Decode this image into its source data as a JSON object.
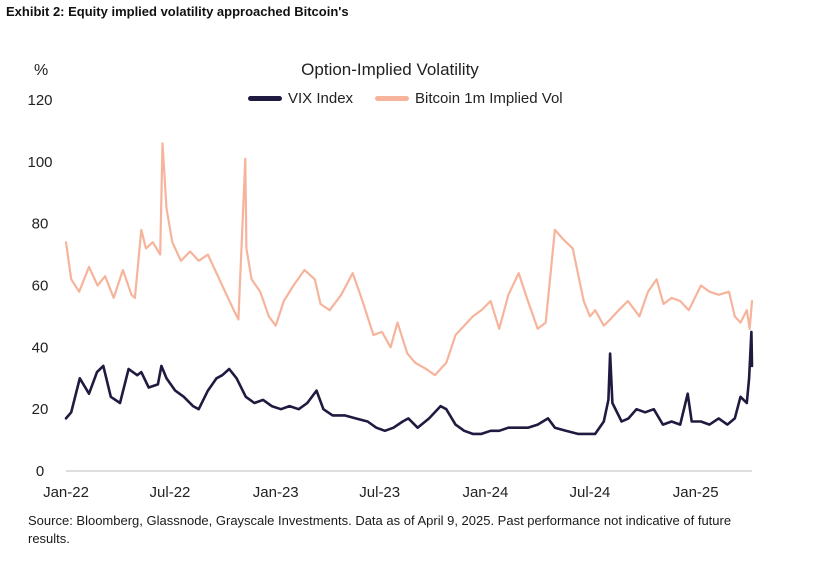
{
  "exhibit_title": "Exhibit 2: Equity implied volatility approached Bitcoin's",
  "source_note": "Source: Bloomberg, Glassnode, Grayscale Investments. Data as of April 9, 2025. Past performance not indicative of future results.",
  "chart_data": {
    "type": "line",
    "title": "Option-Implied Volatility",
    "ylabel": "%",
    "xlabel": "",
    "ylim": [
      0,
      120
    ],
    "yticks": [
      0,
      20,
      40,
      60,
      80,
      100,
      120
    ],
    "xlim": [
      "2022-01-01",
      "2025-04-09"
    ],
    "xticks": [
      {
        "date": "2022-01-01",
        "label": "Jan-22"
      },
      {
        "date": "2022-07-01",
        "label": "Jul-22"
      },
      {
        "date": "2023-01-01",
        "label": "Jan-23"
      },
      {
        "date": "2023-07-01",
        "label": "Jul-23"
      },
      {
        "date": "2024-01-01",
        "label": "Jan-24"
      },
      {
        "date": "2024-07-01",
        "label": "Jul-24"
      },
      {
        "date": "2025-01-01",
        "label": "Jan-25"
      }
    ],
    "grid": false,
    "legend_position": "top-center",
    "series": [
      {
        "name": "Bitcoin 1m Implied Vol",
        "color": "#f6b49c",
        "x": [
          "2022-01-01",
          "2022-01-10",
          "2022-01-24",
          "2022-02-10",
          "2022-02-25",
          "2022-03-10",
          "2022-03-25",
          "2022-04-10",
          "2022-04-25",
          "2022-05-01",
          "2022-05-12",
          "2022-05-20",
          "2022-06-01",
          "2022-06-14",
          "2022-06-18",
          "2022-06-25",
          "2022-07-05",
          "2022-07-20",
          "2022-08-05",
          "2022-08-20",
          "2022-09-05",
          "2022-09-20",
          "2022-10-05",
          "2022-10-20",
          "2022-10-28",
          "2022-11-09",
          "2022-11-11",
          "2022-11-20",
          "2022-12-05",
          "2022-12-20",
          "2023-01-01",
          "2023-01-15",
          "2023-02-01",
          "2023-02-20",
          "2023-03-10",
          "2023-03-20",
          "2023-04-05",
          "2023-04-25",
          "2023-05-15",
          "2023-06-01",
          "2023-06-20",
          "2023-07-05",
          "2023-07-20",
          "2023-08-01",
          "2023-08-18",
          "2023-09-01",
          "2023-09-20",
          "2023-10-05",
          "2023-10-25",
          "2023-11-10",
          "2023-11-25",
          "2023-12-10",
          "2023-12-25",
          "2024-01-10",
          "2024-01-25",
          "2024-02-10",
          "2024-02-28",
          "2024-03-15",
          "2024-04-01",
          "2024-04-15",
          "2024-05-01",
          "2024-05-15",
          "2024-06-01",
          "2024-06-20",
          "2024-07-01",
          "2024-07-10",
          "2024-07-25",
          "2024-08-05",
          "2024-08-20",
          "2024-09-05",
          "2024-09-25",
          "2024-10-10",
          "2024-10-25",
          "2024-11-06",
          "2024-11-20",
          "2024-12-05",
          "2024-12-20",
          "2025-01-10",
          "2025-01-25",
          "2025-02-10",
          "2025-02-28",
          "2025-03-10",
          "2025-03-20",
          "2025-03-31",
          "2025-04-05",
          "2025-04-09"
        ],
        "values": [
          74,
          62,
          58,
          66,
          60,
          63,
          56,
          65,
          57,
          56,
          78,
          72,
          74,
          70,
          106,
          85,
          74,
          68,
          71,
          68,
          70,
          64,
          58,
          52,
          49,
          101,
          72,
          62,
          58,
          50,
          47,
          55,
          60,
          65,
          62,
          54,
          52,
          57,
          64,
          55,
          44,
          45,
          40,
          48,
          38,
          35,
          33,
          31,
          35,
          44,
          47,
          50,
          52,
          55,
          46,
          57,
          64,
          55,
          46,
          48,
          78,
          75,
          72,
          55,
          50,
          52,
          47,
          49,
          52,
          55,
          50,
          58,
          62,
          54,
          56,
          55,
          52,
          60,
          58,
          57,
          58,
          50,
          48,
          52,
          46,
          55
        ]
      },
      {
        "name": "VIX Index",
        "color": "#1f1b40",
        "x": [
          "2022-01-01",
          "2022-01-10",
          "2022-01-25",
          "2022-02-10",
          "2022-02-24",
          "2022-03-07",
          "2022-03-20",
          "2022-04-05",
          "2022-04-20",
          "2022-05-05",
          "2022-05-12",
          "2022-05-25",
          "2022-06-10",
          "2022-06-16",
          "2022-06-25",
          "2022-07-10",
          "2022-07-25",
          "2022-08-10",
          "2022-08-20",
          "2022-09-05",
          "2022-09-20",
          "2022-09-30",
          "2022-10-12",
          "2022-10-25",
          "2022-11-10",
          "2022-11-25",
          "2022-12-10",
          "2022-12-25",
          "2023-01-10",
          "2023-01-25",
          "2023-02-10",
          "2023-02-25",
          "2023-03-13",
          "2023-03-25",
          "2023-04-10",
          "2023-05-01",
          "2023-05-20",
          "2023-06-10",
          "2023-06-25",
          "2023-07-10",
          "2023-07-25",
          "2023-08-10",
          "2023-08-20",
          "2023-09-05",
          "2023-09-25",
          "2023-10-15",
          "2023-10-25",
          "2023-11-10",
          "2023-11-25",
          "2023-12-10",
          "2023-12-25",
          "2024-01-10",
          "2024-01-25",
          "2024-02-10",
          "2024-02-28",
          "2024-03-15",
          "2024-04-01",
          "2024-04-19",
          "2024-05-01",
          "2024-05-20",
          "2024-06-10",
          "2024-06-25",
          "2024-07-10",
          "2024-07-25",
          "2024-08-02",
          "2024-08-05",
          "2024-08-09",
          "2024-08-25",
          "2024-09-06",
          "2024-09-20",
          "2024-10-05",
          "2024-10-20",
          "2024-11-05",
          "2024-11-20",
          "2024-12-05",
          "2024-12-18",
          "2024-12-25",
          "2025-01-10",
          "2025-01-25",
          "2025-02-10",
          "2025-02-25",
          "2025-03-10",
          "2025-03-20",
          "2025-03-31",
          "2025-04-04",
          "2025-04-08",
          "2025-04-09"
        ],
        "values": [
          17,
          19,
          30,
          25,
          32,
          34,
          24,
          22,
          33,
          31,
          32,
          27,
          28,
          34,
          30,
          26,
          24,
          21,
          20,
          26,
          30,
          31,
          33,
          30,
          24,
          22,
          23,
          21,
          20,
          21,
          20,
          22,
          26,
          20,
          18,
          18,
          17,
          16,
          14,
          13,
          14,
          16,
          17,
          14,
          17,
          21,
          20,
          15,
          13,
          12,
          12,
          13,
          13,
          14,
          14,
          14,
          15,
          17,
          14,
          13,
          12,
          12,
          12,
          16,
          23,
          38,
          22,
          16,
          17,
          20,
          19,
          20,
          15,
          16,
          15,
          25,
          16,
          16,
          15,
          17,
          15,
          17,
          24,
          22,
          30,
          45,
          34
        ]
      }
    ]
  }
}
